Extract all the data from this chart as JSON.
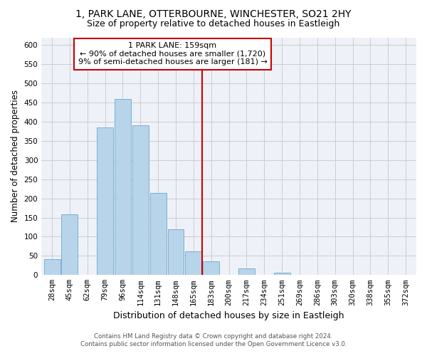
{
  "title": "1, PARK LANE, OTTERBOURNE, WINCHESTER, SO21 2HY",
  "subtitle": "Size of property relative to detached houses in Eastleigh",
  "xlabel": "Distribution of detached houses by size in Eastleigh",
  "ylabel": "Number of detached properties",
  "bar_labels": [
    "28sqm",
    "45sqm",
    "62sqm",
    "79sqm",
    "96sqm",
    "114sqm",
    "131sqm",
    "148sqm",
    "165sqm",
    "183sqm",
    "200sqm",
    "217sqm",
    "234sqm",
    "251sqm",
    "269sqm",
    "286sqm",
    "303sqm",
    "320sqm",
    "338sqm",
    "355sqm",
    "372sqm"
  ],
  "bar_values": [
    42,
    158,
    0,
    385,
    460,
    390,
    215,
    120,
    62,
    35,
    0,
    18,
    0,
    7,
    0,
    0,
    0,
    0,
    0,
    0,
    0
  ],
  "bar_color": "#b8d4ea",
  "bar_edge_color": "#7aafd4",
  "vline_x": 8.5,
  "vline_color": "#cc0000",
  "ylim": [
    0,
    620
  ],
  "yticks": [
    0,
    50,
    100,
    150,
    200,
    250,
    300,
    350,
    400,
    450,
    500,
    550,
    600
  ],
  "annotation_title": "1 PARK LANE: 159sqm",
  "annotation_line1": "← 90% of detached houses are smaller (1,720)",
  "annotation_line2": "9% of semi-detached houses are larger (181) →",
  "annotation_box_color": "#ffffff",
  "annotation_box_edge": "#cc0000",
  "footer1": "Contains HM Land Registry data © Crown copyright and database right 2024.",
  "footer2": "Contains public sector information licensed under the Open Government Licence v3.0.",
  "background_color": "#ffffff",
  "grid_color": "#cccccc",
  "axes_bg": "#eef2f8",
  "title_fontsize": 10,
  "subtitle_fontsize": 9,
  "tick_fontsize": 7.5,
  "ylabel_fontsize": 8.5,
  "xlabel_fontsize": 9
}
